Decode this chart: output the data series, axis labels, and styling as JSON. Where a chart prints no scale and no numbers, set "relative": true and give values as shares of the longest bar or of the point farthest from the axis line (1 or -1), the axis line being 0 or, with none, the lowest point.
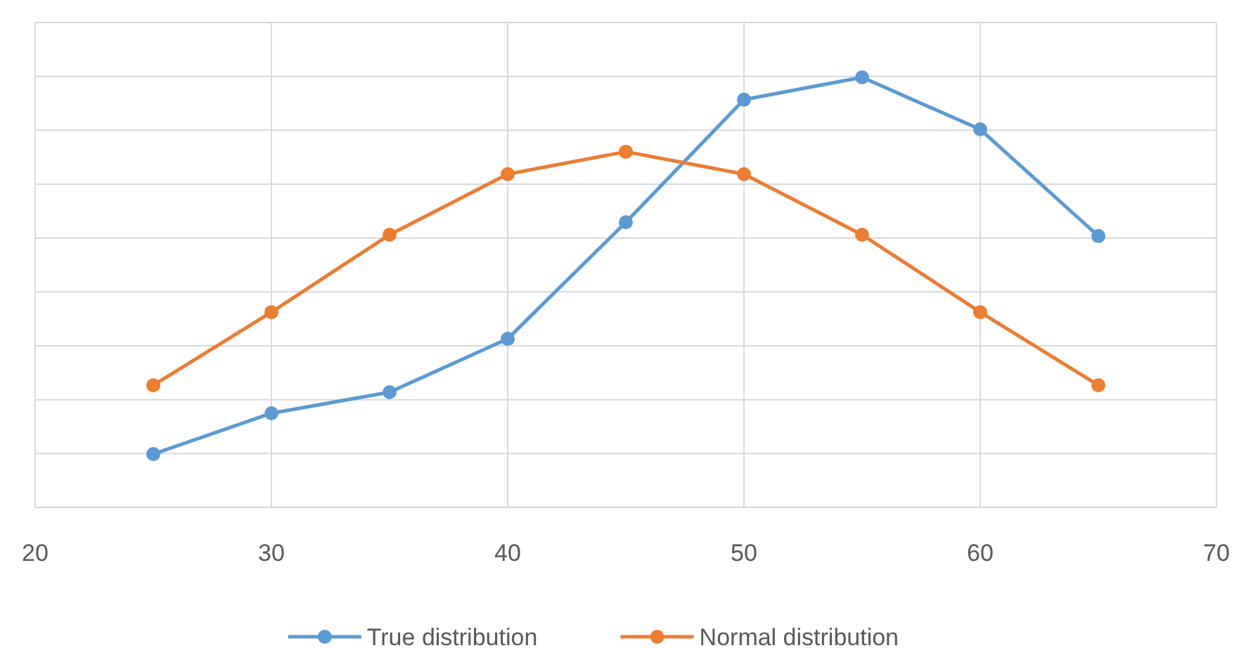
{
  "chart_data": {
    "type": "line",
    "relative": true,
    "x": [
      25,
      30,
      35,
      40,
      45,
      50,
      55,
      60,
      65
    ],
    "xlim": [
      20,
      70
    ],
    "xticks": [
      20,
      30,
      40,
      50,
      60,
      70
    ],
    "grid": true,
    "legend": "bottom",
    "marker": "circle",
    "line_style": "solid",
    "series": [
      {
        "name": "True distribution",
        "color": "#5b9bd5",
        "values": [
          0.124,
          0.219,
          0.268,
          0.392,
          0.663,
          0.948,
          1,
          0.879,
          0.631
        ]
      },
      {
        "name": "Normal distribution",
        "color": "#ed7d31",
        "values": [
          0.284,
          0.454,
          0.634,
          0.775,
          0.827,
          0.775,
          0.634,
          0.454,
          0.284
        ]
      }
    ]
  }
}
